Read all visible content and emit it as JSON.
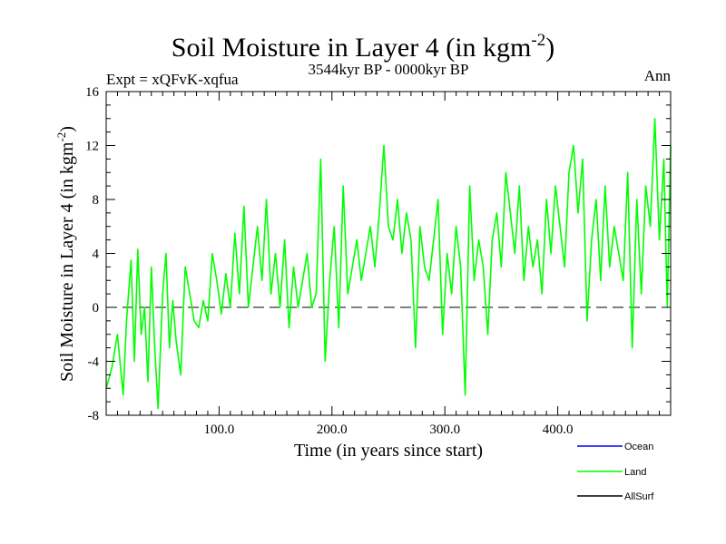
{
  "chart_data": {
    "type": "line",
    "title": "Soil Moisture in Layer 4 (in kgm",
    "title_sup": "-2",
    "title_close": ")",
    "subtitle_left": "Expt = xQFvK-xqfua",
    "subtitle_center": "3544kyr BP - 0000kyr BP",
    "subtitle_right": "Ann",
    "xlabel": "Time (in years since start)",
    "ylabel": "Soil Moisture in Layer 4 (in kgm",
    "ylabel_sup": "-2",
    "ylabel_close": ")",
    "xlim": [
      0,
      500
    ],
    "ylim": [
      -8,
      16
    ],
    "x_ticks": [
      {
        "value": 100,
        "label": "100.0"
      },
      {
        "value": 200,
        "label": "200.0"
      },
      {
        "value": 300,
        "label": "300.0"
      },
      {
        "value": 400,
        "label": "400.0"
      }
    ],
    "y_ticks": [
      {
        "value": -8,
        "label": "-8"
      },
      {
        "value": -4,
        "label": "-4"
      },
      {
        "value": 0,
        "label": "0"
      },
      {
        "value": 4,
        "label": "4"
      },
      {
        "value": 8,
        "label": "8"
      },
      {
        "value": 12,
        "label": "12"
      },
      {
        "value": 16,
        "label": "16"
      }
    ],
    "reference_line": {
      "y": 0,
      "style": "dashed"
    },
    "series": [
      {
        "name": "Ocean",
        "color": "#0000ff",
        "values": []
      },
      {
        "name": "Land",
        "color": "#00ff00",
        "x": [
          0,
          5,
          10,
          15,
          18,
          22,
          25,
          28,
          31,
          34,
          37,
          40,
          43,
          46,
          50,
          53,
          56,
          59,
          62,
          66,
          70,
          74,
          78,
          82,
          86,
          90,
          94,
          98,
          102,
          106,
          110,
          114,
          118,
          122,
          126,
          130,
          134,
          138,
          142,
          146,
          150,
          154,
          158,
          162,
          166,
          170,
          174,
          178,
          182,
          186,
          190,
          194,
          198,
          202,
          206,
          210,
          214,
          218,
          222,
          226,
          230,
          234,
          238,
          242,
          246,
          250,
          254,
          258,
          262,
          266,
          270,
          274,
          278,
          282,
          286,
          290,
          294,
          298,
          302,
          306,
          310,
          314,
          318,
          322,
          326,
          330,
          334,
          338,
          342,
          346,
          350,
          354,
          358,
          362,
          366,
          370,
          374,
          378,
          382,
          386,
          390,
          394,
          398,
          402,
          406,
          410,
          414,
          418,
          422,
          426,
          430,
          434,
          438,
          442,
          446,
          450,
          454,
          458,
          462,
          466,
          470,
          474,
          478,
          482,
          486,
          490,
          494,
          497,
          500
        ],
        "values": [
          -6,
          -4.5,
          -2,
          -6.5,
          -1,
          3.5,
          -4,
          4.3,
          -2,
          0,
          -5.5,
          3,
          -3,
          -7.5,
          1,
          4,
          -3,
          0.5,
          -2.5,
          -5,
          3,
          1,
          -1,
          -1.5,
          0.5,
          -1,
          4,
          2,
          -0.5,
          2.5,
          0,
          5.5,
          1,
          7.5,
          0,
          3,
          6,
          2,
          8,
          1,
          4,
          0,
          5,
          -1.5,
          3,
          0,
          2,
          4,
          0,
          1,
          11,
          -4,
          2,
          6,
          -1.5,
          9,
          1,
          3,
          5,
          2,
          4,
          6,
          3,
          7,
          12,
          6,
          5,
          8,
          4,
          7,
          5,
          -3,
          6,
          3,
          2,
          5,
          8,
          -2,
          4,
          1,
          6,
          3,
          -6.5,
          9,
          2,
          5,
          3,
          -2,
          5,
          7,
          3,
          10,
          7,
          4,
          9,
          2,
          6,
          3,
          5,
          1,
          8,
          4,
          9,
          6,
          3,
          10,
          12,
          7,
          11,
          -1,
          5,
          8,
          2,
          9,
          3,
          6,
          4,
          2,
          10,
          -3,
          8,
          1,
          9,
          6,
          14,
          5,
          11,
          0,
          12
        ]
      },
      {
        "name": "AllSurf",
        "color": "#000000",
        "values": []
      }
    ],
    "legend_position": "bottom-right"
  }
}
